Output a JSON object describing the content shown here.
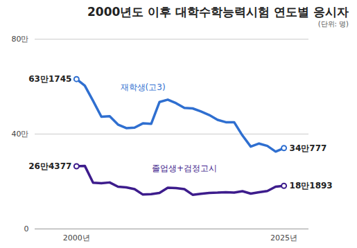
{
  "chart_data": {
    "type": "line",
    "title": "2000년도 이후 대학수학능력시험 연도별 응시자",
    "subtitle": "(단위: 명)",
    "x": [
      2000,
      2001,
      2002,
      2003,
      2004,
      2005,
      2006,
      2007,
      2008,
      2009,
      2010,
      2011,
      2012,
      2013,
      2014,
      2015,
      2016,
      2017,
      2018,
      2019,
      2020,
      2021,
      2022,
      2023,
      2024,
      2025
    ],
    "series": [
      {
        "name": "재학생(고3)",
        "color": "#2f6fd0",
        "values": [
          631745,
          604000,
          540000,
          473000,
          475000,
          440000,
          425000,
          427000,
          445000,
          443000,
          535000,
          545000,
          530000,
          510000,
          508000,
          495000,
          480000,
          460000,
          450000,
          450000,
          394000,
          347000,
          360000,
          350000,
          326000,
          340777
        ],
        "value_labels": [
          "63만1745",
          null,
          null,
          null,
          null,
          null,
          null,
          null,
          null,
          null,
          null,
          null,
          null,
          null,
          null,
          null,
          null,
          null,
          null,
          null,
          null,
          null,
          null,
          null,
          null,
          "34만777"
        ]
      },
      {
        "name": "졸업생+검정고시",
        "color": "#3d1c8c",
        "values": [
          264377,
          266000,
          195000,
          193000,
          196000,
          178000,
          175000,
          168000,
          145000,
          147000,
          152000,
          174000,
          172000,
          168000,
          144000,
          148000,
          152000,
          153000,
          155000,
          153000,
          159000,
          149000,
          155000,
          160000,
          178000,
          181893
        ],
        "value_labels": [
          "26만4377",
          null,
          null,
          null,
          null,
          null,
          null,
          null,
          null,
          null,
          null,
          null,
          null,
          null,
          null,
          null,
          null,
          null,
          null,
          null,
          null,
          null,
          null,
          null,
          null,
          "18만1893"
        ]
      }
    ],
    "xlim": [
      1995,
      2028
    ],
    "xticks": [
      {
        "value": 2000,
        "label": "2000년"
      },
      {
        "value": 2025,
        "label": "2025년"
      }
    ],
    "ylim": [
      0,
      800000
    ],
    "yticks": [
      0,
      {
        "value": 400000,
        "label": "40만"
      },
      {
        "value": 800000,
        "label": "80만"
      }
    ],
    "grid": true
  }
}
